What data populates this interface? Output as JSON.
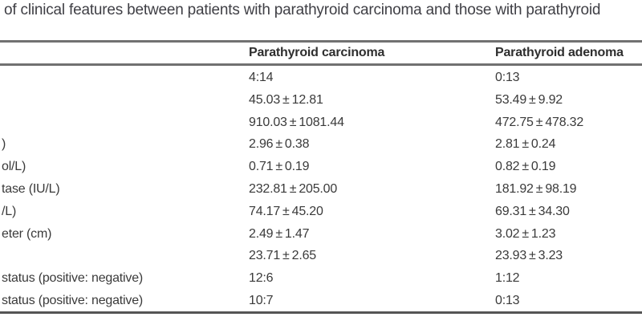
{
  "caption": "of clinical features between patients with parathyroid carcinoma and those with parathyroid",
  "table": {
    "columns": {
      "col2": "Parathyroid carcinoma",
      "col3": "Parathyroid adenoma"
    },
    "rows": [
      {
        "label": "",
        "carcinoma": "4:14",
        "adenoma": "0:13"
      },
      {
        "label": "",
        "carcinoma": "45.03 ± 12.81",
        "adenoma": "53.49 ± 9.92"
      },
      {
        "label": "",
        "carcinoma": "910.03 ± 1081.44",
        "adenoma": "472.75 ± 478.32"
      },
      {
        "label": ")",
        "carcinoma": "2.96 ± 0.38",
        "adenoma": "2.81 ± 0.24"
      },
      {
        "label": "ol/L)",
        "carcinoma": "0.71 ± 0.19",
        "adenoma": "0.82 ± 0.19"
      },
      {
        "label": "tase (IU/L)",
        "carcinoma": "232.81 ± 205.00",
        "adenoma": "181.92 ± 98.19"
      },
      {
        "label": "/L)",
        "carcinoma": "74.17 ± 45.20",
        "adenoma": "69.31 ± 34.30"
      },
      {
        "label": "eter (cm)",
        "carcinoma": "2.49 ± 1.47",
        "adenoma": "3.02 ± 1.23"
      },
      {
        "label": "",
        "carcinoma": "23.71 ± 2.65",
        "adenoma": "23.93 ± 3.23"
      },
      {
        "label": "status (positive: negative)",
        "carcinoma": "12:6",
        "adenoma": "1:12"
      },
      {
        "label": "status (positive: negative)",
        "carcinoma": "10:7",
        "adenoma": "0:13"
      }
    ]
  },
  "colors": {
    "background": "#ffffff",
    "text": "#3a3a3a",
    "header_text": "#2e2e2e",
    "rule": "#717171",
    "bottom_rule": "#555555"
  }
}
